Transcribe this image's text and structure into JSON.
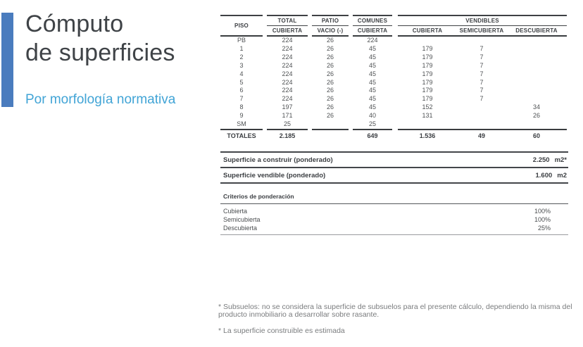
{
  "slide": {
    "title_line1": "Cómputo",
    "title_line2": "de superficies",
    "subtitle": "Por morfología normativa",
    "accent_color": "#4a7cbe",
    "subtitle_color": "#41a4d6"
  },
  "table": {
    "headers": {
      "piso": "PISO",
      "group_total": "TOTAL",
      "group_patio": "PATIO",
      "group_comunes": "COMUNES",
      "group_vendibles": "VENDIBLES",
      "sub_total": "CUBIERTA",
      "sub_patio": "VACIO (-)",
      "sub_comunes": "CUBIERTA",
      "sub_vend_cubierta": "CUBIERTA",
      "sub_vend_semicubierta": "SEMICUBIERTA",
      "sub_vend_descubierta": "DESCUBIERTA"
    },
    "rows": [
      [
        "PB",
        "224",
        "26",
        "224",
        "",
        "",
        ""
      ],
      [
        "1",
        "224",
        "26",
        "45",
        "179",
        "7",
        ""
      ],
      [
        "2",
        "224",
        "26",
        "45",
        "179",
        "7",
        ""
      ],
      [
        "3",
        "224",
        "26",
        "45",
        "179",
        "7",
        ""
      ],
      [
        "4",
        "224",
        "26",
        "45",
        "179",
        "7",
        ""
      ],
      [
        "5",
        "224",
        "26",
        "45",
        "179",
        "7",
        ""
      ],
      [
        "6",
        "224",
        "26",
        "45",
        "179",
        "7",
        ""
      ],
      [
        "7",
        "224",
        "26",
        "45",
        "179",
        "7",
        ""
      ],
      [
        "8",
        "197",
        "26",
        "45",
        "152",
        "",
        "34"
      ],
      [
        "9",
        "171",
        "26",
        "40",
        "131",
        "",
        "26"
      ],
      [
        "SM",
        "25",
        "",
        "25",
        "",
        "",
        ""
      ]
    ],
    "totals": {
      "label": "TOTALES",
      "total": "2.185",
      "patio": "",
      "comunes": "649",
      "v_cub": "1.536",
      "v_semi": "49",
      "v_desc": "60"
    }
  },
  "summary": [
    {
      "label": "Superficie a construir (ponderado)",
      "value": "2.250",
      "unit": "m2*"
    },
    {
      "label": "Superficie vendible (ponderado)",
      "value": "1.600",
      "unit": "m2"
    }
  ],
  "criteria": {
    "title": "Criterios de ponderación",
    "rows": [
      {
        "label": "Cubierta",
        "value": "100%"
      },
      {
        "label": "Semicubierta",
        "value": "100%"
      },
      {
        "label": "Descubierta",
        "value": "25%"
      }
    ]
  },
  "footnotes": [
    {
      "lines": [
        "* Subsuelos: no se considera la superficie de subsuelos para el presente cálculo, dependiendo la misma del",
        "producto inmobiliario a desarrollar sobre rasante."
      ]
    },
    {
      "lines": [
        "* La superficie construible es estimada"
      ]
    }
  ]
}
